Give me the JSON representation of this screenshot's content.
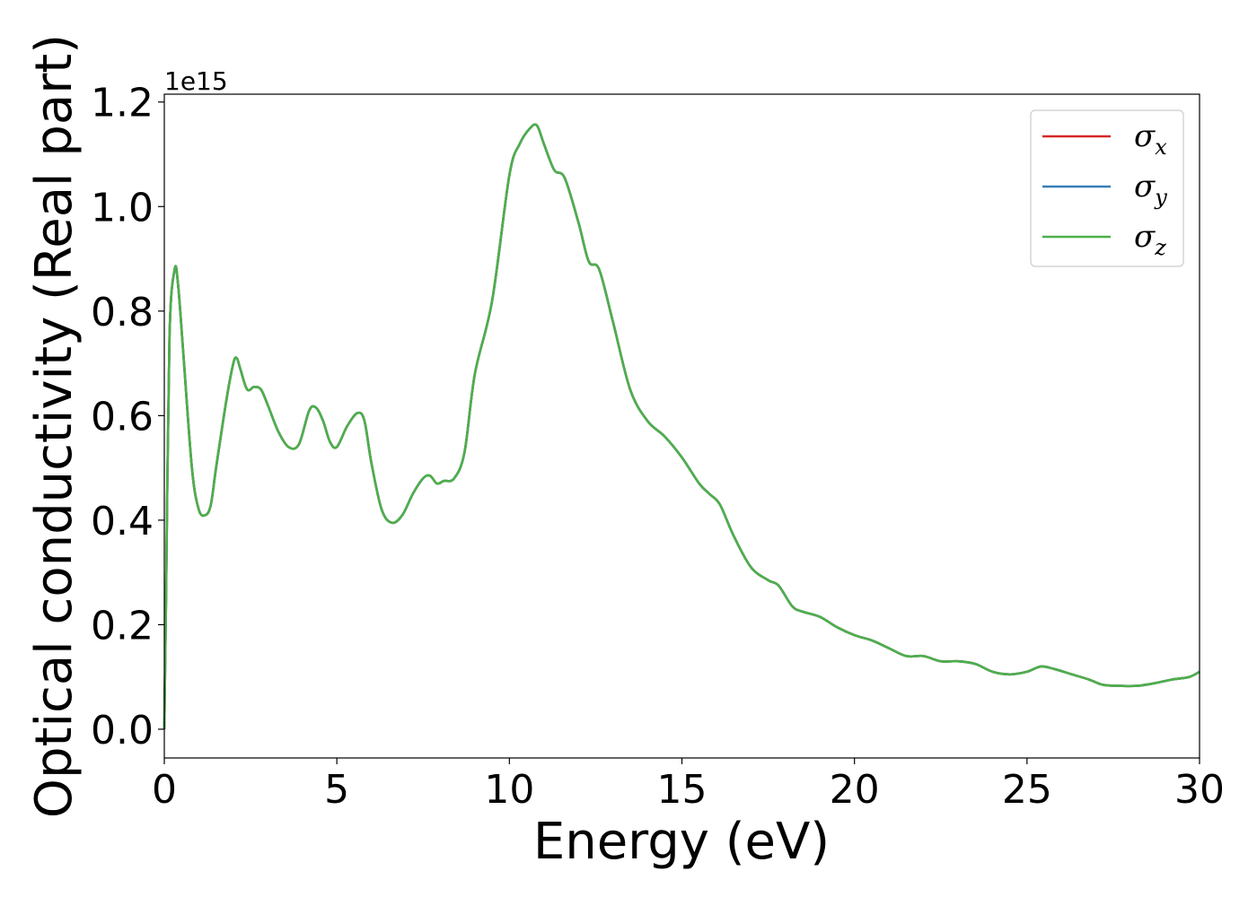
{
  "chart_data": {
    "type": "line",
    "xlabel": "Energy (eV)",
    "ylabel": "Optical conductivity (Real part)",
    "y_offset_text": "1e15",
    "xlim": [
      0,
      30
    ],
    "ylim": [
      -0.055,
      1.215
    ],
    "y_scale_factor": 1000000000000000.0,
    "xticks": [
      0,
      5,
      10,
      15,
      20,
      25,
      30
    ],
    "xtick_labels": [
      "0",
      "5",
      "10",
      "15",
      "20",
      "25",
      "30"
    ],
    "yticks": [
      0.0,
      0.2,
      0.4,
      0.6,
      0.8,
      1.0,
      1.2
    ],
    "ytick_labels": [
      "0.0",
      "0.2",
      "0.4",
      "0.6",
      "0.8",
      "1.0",
      "1.2"
    ],
    "grid": false,
    "legend_position": "top-right",
    "x": [
      0,
      0.05,
      0.15,
      0.3,
      0.4,
      0.55,
      0.8,
      1.0,
      1.2,
      1.35,
      1.5,
      1.8,
      2.0,
      2.1,
      2.2,
      2.4,
      2.6,
      2.8,
      3.0,
      3.3,
      3.6,
      3.9,
      4.2,
      4.4,
      4.6,
      4.8,
      5.0,
      5.3,
      5.6,
      5.8,
      6.0,
      6.3,
      6.6,
      6.9,
      7.2,
      7.5,
      7.7,
      7.9,
      8.1,
      8.4,
      8.7,
      9.0,
      9.5,
      10.0,
      10.3,
      10.6,
      10.8,
      11.0,
      11.3,
      11.6,
      12.0,
      12.3,
      12.6,
      13.0,
      13.5,
      14.0,
      14.5,
      15.0,
      15.5,
      15.8,
      16.1,
      16.5,
      17.0,
      17.5,
      17.8,
      18.2,
      18.5,
      19.0,
      19.5,
      20.0,
      20.5,
      21.0,
      21.5,
      22.0,
      22.5,
      23.0,
      23.5,
      24.0,
      24.5,
      25.0,
      25.4,
      25.8,
      26.3,
      26.8,
      27.2,
      27.7,
      28.2,
      28.7,
      29.2,
      29.7,
      30.0
    ],
    "series": [
      {
        "name": "σx",
        "color": "#d62728",
        "values": [
          0.0,
          0.25,
          0.75,
          0.88,
          0.85,
          0.72,
          0.5,
          0.42,
          0.41,
          0.43,
          0.5,
          0.63,
          0.7,
          0.71,
          0.69,
          0.65,
          0.655,
          0.65,
          0.62,
          0.57,
          0.54,
          0.545,
          0.61,
          0.615,
          0.59,
          0.55,
          0.54,
          0.58,
          0.605,
          0.59,
          0.51,
          0.42,
          0.395,
          0.41,
          0.45,
          0.48,
          0.485,
          0.47,
          0.475,
          0.48,
          0.53,
          0.68,
          0.82,
          1.06,
          1.12,
          1.15,
          1.155,
          1.12,
          1.07,
          1.055,
          0.97,
          0.895,
          0.88,
          0.78,
          0.65,
          0.59,
          0.56,
          0.52,
          0.47,
          0.45,
          0.43,
          0.37,
          0.31,
          0.285,
          0.275,
          0.235,
          0.225,
          0.215,
          0.195,
          0.18,
          0.17,
          0.155,
          0.14,
          0.14,
          0.13,
          0.13,
          0.125,
          0.11,
          0.105,
          0.11,
          0.12,
          0.115,
          0.105,
          0.095,
          0.085,
          0.083,
          0.083,
          0.088,
          0.095,
          0.1,
          0.11
        ]
      },
      {
        "name": "σy",
        "color": "#377eb8",
        "values": [
          0.0,
          0.25,
          0.75,
          0.88,
          0.85,
          0.72,
          0.5,
          0.42,
          0.41,
          0.43,
          0.5,
          0.63,
          0.7,
          0.71,
          0.69,
          0.65,
          0.655,
          0.65,
          0.62,
          0.57,
          0.54,
          0.545,
          0.61,
          0.615,
          0.59,
          0.55,
          0.54,
          0.58,
          0.605,
          0.59,
          0.51,
          0.42,
          0.395,
          0.41,
          0.45,
          0.48,
          0.485,
          0.47,
          0.475,
          0.48,
          0.53,
          0.68,
          0.82,
          1.06,
          1.12,
          1.15,
          1.155,
          1.12,
          1.07,
          1.055,
          0.97,
          0.895,
          0.88,
          0.78,
          0.65,
          0.59,
          0.56,
          0.52,
          0.47,
          0.45,
          0.43,
          0.37,
          0.31,
          0.285,
          0.275,
          0.235,
          0.225,
          0.215,
          0.195,
          0.18,
          0.17,
          0.155,
          0.14,
          0.14,
          0.13,
          0.13,
          0.125,
          0.11,
          0.105,
          0.11,
          0.12,
          0.115,
          0.105,
          0.095,
          0.085,
          0.083,
          0.083,
          0.088,
          0.095,
          0.1,
          0.11
        ]
      },
      {
        "name": "σz",
        "color": "#4daf4a",
        "values": [
          0.0,
          0.25,
          0.75,
          0.88,
          0.85,
          0.72,
          0.5,
          0.42,
          0.41,
          0.43,
          0.5,
          0.63,
          0.7,
          0.71,
          0.69,
          0.65,
          0.655,
          0.65,
          0.62,
          0.57,
          0.54,
          0.545,
          0.61,
          0.615,
          0.59,
          0.55,
          0.54,
          0.58,
          0.605,
          0.59,
          0.51,
          0.42,
          0.395,
          0.41,
          0.45,
          0.48,
          0.485,
          0.47,
          0.475,
          0.48,
          0.53,
          0.68,
          0.82,
          1.06,
          1.12,
          1.15,
          1.155,
          1.12,
          1.07,
          1.055,
          0.97,
          0.895,
          0.88,
          0.78,
          0.65,
          0.59,
          0.56,
          0.52,
          0.47,
          0.45,
          0.43,
          0.37,
          0.31,
          0.285,
          0.275,
          0.235,
          0.225,
          0.215,
          0.195,
          0.18,
          0.17,
          0.155,
          0.14,
          0.14,
          0.13,
          0.13,
          0.125,
          0.11,
          0.105,
          0.11,
          0.12,
          0.115,
          0.105,
          0.095,
          0.085,
          0.083,
          0.083,
          0.088,
          0.095,
          0.1,
          0.11
        ]
      }
    ],
    "legend_entries": [
      {
        "symbol": "σ",
        "sub": "x",
        "color": "#d62728"
      },
      {
        "symbol": "σ",
        "sub": "y",
        "color": "#377eb8"
      },
      {
        "symbol": "σ",
        "sub": "z",
        "color": "#4daf4a"
      }
    ]
  }
}
